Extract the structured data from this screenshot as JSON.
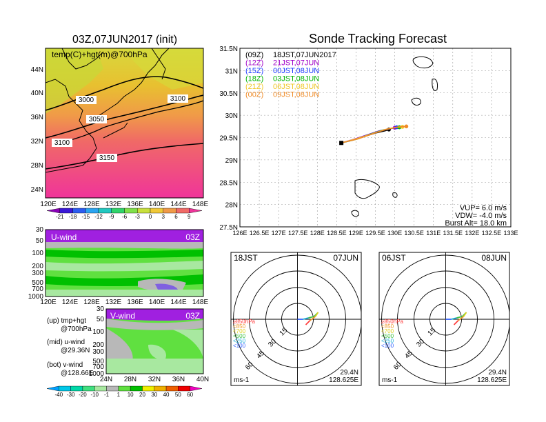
{
  "map_panel": {
    "title": "03Z,07JUN2017 (init)",
    "subtitle": "temp(C)+hgt(m)@700hPa",
    "lat_labels": [
      "44N",
      "40N",
      "36N",
      "32N",
      "28N",
      "24N"
    ],
    "lon_labels": [
      "120E",
      "124E",
      "128E",
      "132E",
      "136E",
      "140E",
      "144E",
      "148E"
    ],
    "contours": [
      "3000",
      "3050",
      "3100",
      "3100",
      "3150"
    ],
    "colorbar_labels": [
      "-21",
      "-18",
      "-15",
      "-12",
      "-9",
      "-6",
      "-3",
      "0",
      "3",
      "6",
      "9"
    ],
    "colorbar_colors": [
      "#8a00b8",
      "#3a18d6",
      "#2c5cf0",
      "#2aa4f0",
      "#22c8c0",
      "#2fd46a",
      "#7fe04a",
      "#c8e03c",
      "#f0c838",
      "#f09a48",
      "#f06a66",
      "#f0349a"
    ]
  },
  "uwind_panel": {
    "label": "U-wind",
    "time": "03Z",
    "p_labels": [
      "30",
      "50",
      "100",
      "200",
      "300",
      "500",
      "700",
      "1000"
    ],
    "lon_labels": [
      "120E",
      "124E",
      "128E",
      "132E",
      "136E",
      "140E",
      "144E",
      "148E"
    ]
  },
  "vwind_panel": {
    "label": "V-wind",
    "time": "03Z",
    "p_labels": [
      "30",
      "50",
      "100",
      "200",
      "300",
      "500",
      "700",
      "1000"
    ],
    "lat_labels": [
      "24N",
      "28N",
      "32N",
      "36N",
      "40N"
    ]
  },
  "notes": [
    {
      "line1": "(up) tmp+hgt",
      "line2": "@700hPa"
    },
    {
      "line1": "(mid) u-wind",
      "line2": "@29.36N"
    },
    {
      "line1": "(bot) v-wind",
      "line2": "@128.66E"
    }
  ],
  "wind_colorbar_labels": [
    "-40",
    "-30",
    "-20",
    "-10",
    "-1",
    "1",
    "10",
    "20",
    "30",
    "40",
    "50",
    "60"
  ],
  "wind_colorbar_colors": [
    "#00a0ff",
    "#00c8e8",
    "#00d8a8",
    "#40e080",
    "#a8e8a0",
    "#b8b8b8",
    "#60e040",
    "#00c000",
    "#f0f000",
    "#f0b000",
    "#f06000",
    "#f00000",
    "#f000c0"
  ],
  "tracking": {
    "title": "Sonde Tracking Forecast",
    "lat_labels": [
      "31.5N",
      "31N",
      "30.5N",
      "30N",
      "29.5N",
      "29N",
      "28.5N",
      "28N",
      "27.5N"
    ],
    "lon_labels": [
      "126E",
      "126.5E",
      "127E",
      "127.5E",
      "128E",
      "128.5E",
      "129E",
      "129.5E",
      "130E",
      "130.5E",
      "131E",
      "131.5E",
      "132E",
      "132.5E",
      "133E"
    ],
    "legend": [
      {
        "code": "(09Z)",
        "time": "18JST,07JUN2017",
        "color": "#000000"
      },
      {
        "code": "(12Z)",
        "time": "21JST,07JUN",
        "color": "#a000c8"
      },
      {
        "code": "(15Z)",
        "time": "00JST,08JUN",
        "color": "#1e3cff"
      },
      {
        "code": "(18Z)",
        "time": "03JST,08JUN",
        "color": "#00b400"
      },
      {
        "code": "(21Z)",
        "time": "06JST,08JUN",
        "color": "#f0c828"
      },
      {
        "code": "(00Z)",
        "time": "09JST,08JUN",
        "color": "#f08c28"
      }
    ],
    "params": {
      "vup": "VUP= 6.0 m/s",
      "vdw": "VDW= -4.0 m/s",
      "burst": "Burst Alt= 18.0 km"
    }
  },
  "chart_data": {
    "type": "line",
    "title": "Sonde Tracking Forecast",
    "xlim": [
      126,
      133
    ],
    "ylim": [
      27.5,
      31.5
    ],
    "series": [
      {
        "name": "(09Z) 18JST,07JUN2017",
        "x": [
          128.62,
          128.9,
          129.2,
          129.5,
          129.75,
          129.85
        ],
        "y": [
          29.38,
          29.44,
          29.52,
          29.6,
          29.65,
          29.68
        ]
      },
      {
        "name": "(12Z) 21JST,07JUN",
        "x": [
          128.62,
          128.9,
          129.25,
          129.6,
          129.9,
          130.0
        ],
        "y": [
          29.38,
          29.45,
          29.55,
          29.65,
          29.7,
          29.72
        ]
      },
      {
        "name": "(15Z) 00JST,08JUN",
        "x": [
          128.62,
          128.95,
          129.3,
          129.65,
          129.95,
          130.05
        ],
        "y": [
          29.38,
          29.45,
          29.56,
          29.66,
          29.71,
          29.73
        ]
      },
      {
        "name": "(18Z) 03JST,08JUN",
        "x": [
          128.62,
          129.0,
          129.35,
          129.7,
          130.0,
          130.12
        ],
        "y": [
          29.38,
          29.46,
          29.57,
          29.67,
          29.72,
          29.73
        ]
      },
      {
        "name": "(21Z) 06JST,08JUN",
        "x": [
          128.62,
          129.0,
          129.4,
          129.75,
          130.05,
          130.2
        ],
        "y": [
          29.38,
          29.47,
          29.58,
          29.68,
          29.73,
          29.74
        ]
      },
      {
        "name": "(00Z) 09JST,08JUN",
        "x": [
          128.62,
          129.05,
          129.45,
          129.8,
          130.1,
          130.3
        ],
        "y": [
          29.38,
          29.47,
          29.59,
          29.69,
          29.74,
          29.75
        ]
      }
    ]
  },
  "hodo_left": {
    "tl": "18JST",
    "tr": "07JUN",
    "ring_labels": [
      "15",
      "30",
      "45",
      "60"
    ],
    "legend": [
      {
        "label": "≥850hPa",
        "color": "#ff3c3c"
      },
      {
        "label": "<850",
        "color": "#f09a30"
      },
      {
        "label": "<700",
        "color": "#e0d020"
      },
      {
        "label": "<500",
        "color": "#40c040"
      },
      {
        "label": "<250",
        "color": "#20b0d8"
      },
      {
        "label": "<100",
        "color": "#3060ff"
      }
    ],
    "unit": "ms-1",
    "lat": "29.4N",
    "lon": "128.625E"
  },
  "hodo_right": {
    "tl": "06JST",
    "tr": "08JUN",
    "ring_labels": [
      "15",
      "30",
      "45",
      "60"
    ],
    "legend": [
      {
        "label": "≥850hPa",
        "color": "#ff3c3c"
      },
      {
        "label": "<850",
        "color": "#f09a30"
      },
      {
        "label": "<700",
        "color": "#e0d020"
      },
      {
        "label": "<500",
        "color": "#40c040"
      },
      {
        "label": "<250",
        "color": "#20b0d8"
      },
      {
        "label": "<100",
        "color": "#3060ff"
      }
    ],
    "unit": "ms-1",
    "lat": "29.4N",
    "lon": "128.625E"
  }
}
